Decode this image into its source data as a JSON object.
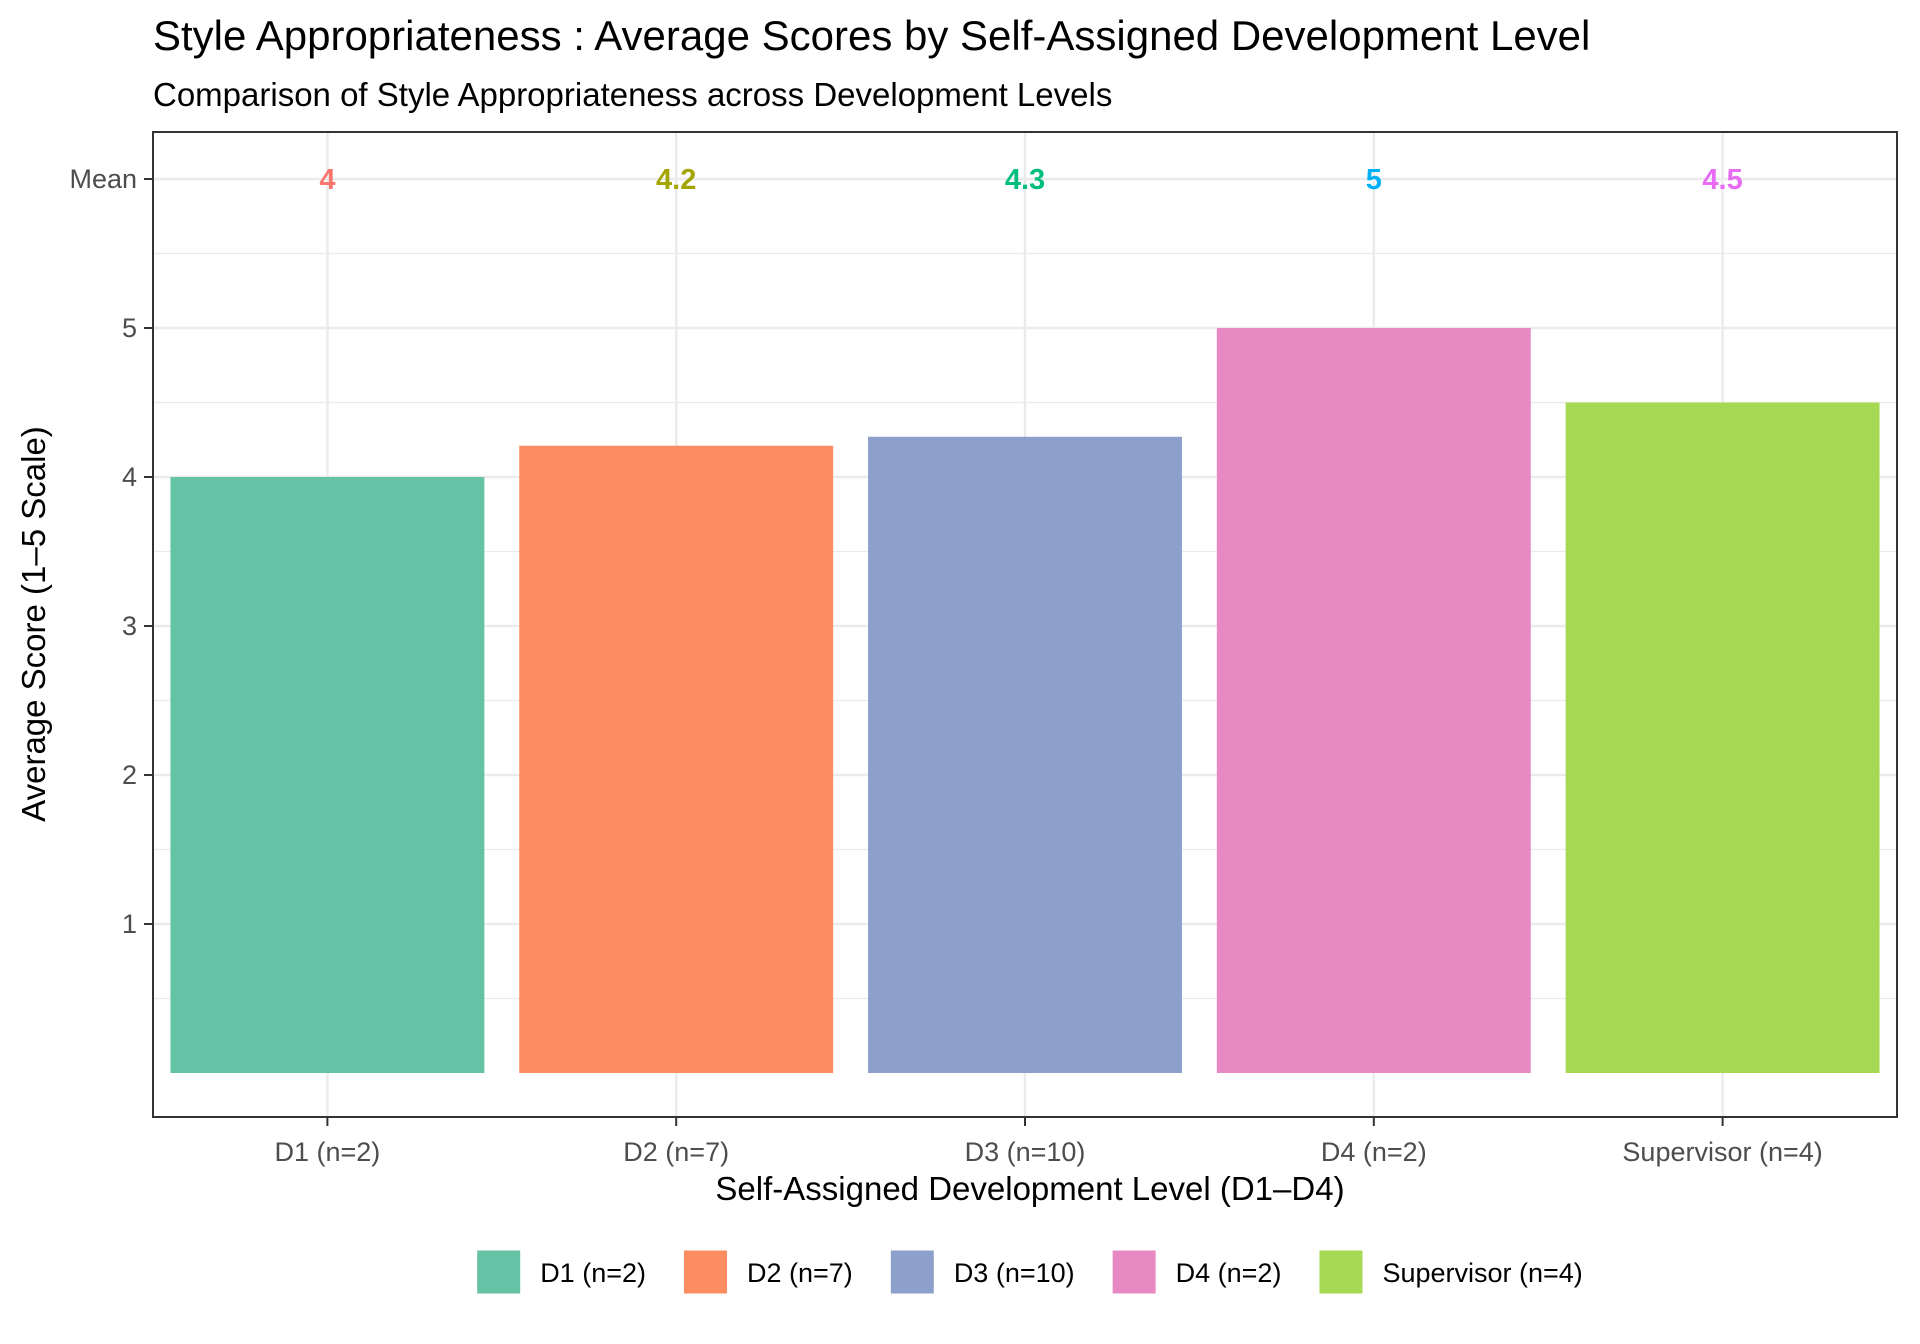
{
  "chart_data": {
    "type": "bar",
    "title": "Style Appropriateness : Average Scores by Self-Assigned Development Level",
    "subtitle": "Comparison of Style Appropriateness across Development Levels",
    "xlabel": "Self-Assigned Development Level (D1–D4)",
    "ylabel": "Average Score (1–5 Scale)",
    "categories": [
      "D1 (n=2)",
      "D2 (n=7)",
      "D3 (n=10)",
      "D4 (n=2)",
      "Supervisor (n=4)"
    ],
    "values": [
      4.0,
      4.21,
      4.27,
      5.0,
      4.5
    ],
    "mean_row_label": "Mean",
    "mean_labels": [
      "4",
      "4.2",
      "4.3",
      "5",
      "4.5"
    ],
    "mean_label_colors": [
      "#F8766D",
      "#A3A500",
      "#00BF7D",
      "#00B0F6",
      "#E76BF3"
    ],
    "bar_colors": [
      "#66C2A5",
      "#FC8D62",
      "#8DA0CB",
      "#E78AC3",
      "#A6D854"
    ],
    "yticks": [
      "1",
      "2",
      "3",
      "4",
      "5"
    ],
    "ylim": [
      0,
      6
    ],
    "grid": true,
    "legend": {
      "position": "bottom",
      "entries": [
        "D1 (n=2)",
        "D2 (n=7)",
        "D3 (n=10)",
        "D4 (n=2)",
        "Supervisor (n=4)"
      ]
    }
  }
}
